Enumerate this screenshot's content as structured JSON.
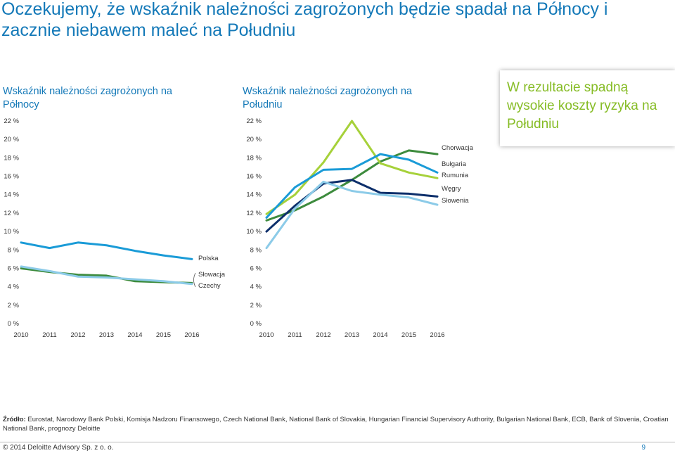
{
  "slide": {
    "title": "Oczekujemy, że wskaźnik należności zagrożonych będzie spadał na Północy i zacznie niebawem maleć na Południu"
  },
  "callout": {
    "text": "W rezultacie spadną wysokie koszty ryzyka na Południu"
  },
  "sources": {
    "label": "Źródło:",
    "text": " Eurostat, Narodowy Bank Polski, Komisja Nadzoru Finansowego, Czech National Bank, National Bank of Slovakia, Hungarian Financial Supervisory Authority, Bulgarian National Bank, ECB, Bank of Slovenia, Croatian National Bank, prognozy Deloitte"
  },
  "footer": {
    "copyright": "© 2014 Deloitte Advisory Sp. z o. o.",
    "page_number": "9"
  },
  "colors": {
    "title_blue": "#1479b8",
    "callout_green": "#86bc25"
  },
  "chart_data": [
    {
      "type": "line",
      "title": "Wskaźnik należności zagrożonych na Północy",
      "x": [
        "2010",
        "2011",
        "2012",
        "2013",
        "2014",
        "2015",
        "2016"
      ],
      "y_ticks": [
        "0 %",
        "2 %",
        "4 %",
        "6 %",
        "8 %",
        "10 %",
        "12 %",
        "14 %",
        "16 %",
        "18 %",
        "20 %",
        "22 %"
      ],
      "ylim": [
        0,
        22
      ],
      "series": [
        {
          "name": "Polska",
          "color": "#1a9bd7",
          "values": [
            8.8,
            8.2,
            8.8,
            8.5,
            7.9,
            7.4,
            7.0
          ]
        },
        {
          "name": "Słowacja",
          "color": "#3d8b3d",
          "values": [
            6.0,
            5.6,
            5.3,
            5.2,
            4.6,
            4.5,
            4.4
          ]
        },
        {
          "name": "Czechy",
          "color": "#8ccbe8",
          "values": [
            6.2,
            5.7,
            5.1,
            5.0,
            4.8,
            4.6,
            4.3
          ]
        }
      ]
    },
    {
      "type": "line",
      "title": "Wskaźnik należności zagrożonych na Południu",
      "x": [
        "2010",
        "2011",
        "2012",
        "2013",
        "2014",
        "2015",
        "2016"
      ],
      "y_ticks": [
        "0 %",
        "2 %",
        "4 %",
        "6 %",
        "8 %",
        "10 %",
        "12 %",
        "14 %",
        "16 %",
        "18 %",
        "20 %",
        "22 %"
      ],
      "ylim": [
        0,
        22
      ],
      "series": [
        {
          "name": "Chorwacja",
          "color": "#3d8b3d",
          "values": [
            11.2,
            12.3,
            13.8,
            15.6,
            17.6,
            18.8,
            18.4
          ]
        },
        {
          "name": "Bułgaria",
          "color": "#a6d13a",
          "values": [
            11.9,
            14.0,
            17.5,
            22.0,
            17.4,
            16.4,
            15.8
          ]
        },
        {
          "name": "Rumunia",
          "color": "#1a9bd7",
          "values": [
            11.5,
            14.8,
            16.7,
            16.8,
            18.4,
            17.8,
            16.4
          ]
        },
        {
          "name": "Węgry",
          "color": "#0d2f6b",
          "values": [
            10.0,
            12.8,
            15.2,
            15.6,
            14.2,
            14.1,
            13.8
          ]
        },
        {
          "name": "Słowenia",
          "color": "#8ccbe8",
          "values": [
            8.2,
            12.5,
            15.4,
            14.4,
            14.0,
            13.7,
            12.9
          ]
        }
      ]
    }
  ]
}
